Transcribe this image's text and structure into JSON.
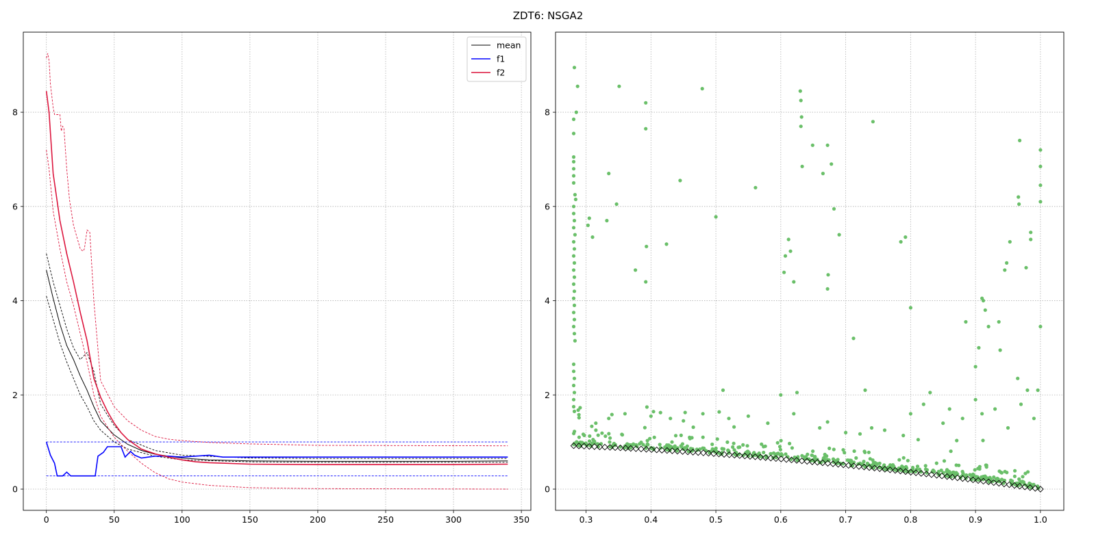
{
  "figure": {
    "title": "ZDT6: NSGA2"
  },
  "chart_data": [
    {
      "type": "line",
      "title": "",
      "xlabel": "",
      "ylabel": "",
      "xlim": [
        -17,
        357
      ],
      "ylim": [
        -0.45,
        9.7
      ],
      "xticks": [
        0,
        50,
        100,
        150,
        200,
        250,
        300,
        350
      ],
      "yticks": [
        0,
        2,
        4,
        6,
        8
      ],
      "grid": true,
      "legend": {
        "placement": "top-right",
        "entries": [
          "mean",
          "f1",
          "f2"
        ]
      },
      "colors": {
        "mean": "#000000",
        "f1": "#0000ff",
        "f2": "#dc143c"
      },
      "series": [
        {
          "name": "mean",
          "style": "solid",
          "color": "#000000",
          "x": [
            0,
            5,
            10,
            15,
            20,
            25,
            30,
            35,
            40,
            50,
            60,
            70,
            80,
            100,
            120,
            150,
            200,
            250,
            300,
            340
          ],
          "y": [
            4.65,
            4.05,
            3.5,
            3.05,
            2.75,
            2.4,
            2.1,
            1.75,
            1.45,
            1.15,
            0.95,
            0.82,
            0.74,
            0.66,
            0.62,
            0.6,
            0.59,
            0.59,
            0.59,
            0.6
          ]
        },
        {
          "name": "mean max",
          "style": "dashed",
          "color": "#000000",
          "x": [
            0,
            5,
            10,
            15,
            20,
            25,
            30,
            35,
            40,
            50,
            60,
            80,
            100,
            150,
            200,
            340
          ],
          "y": [
            5.0,
            4.4,
            3.9,
            3.4,
            3.0,
            2.75,
            2.9,
            2.5,
            1.8,
            1.35,
            1.05,
            0.82,
            0.72,
            0.66,
            0.65,
            0.65
          ]
        },
        {
          "name": "mean min",
          "style": "dashed",
          "color": "#000000",
          "x": [
            0,
            5,
            10,
            15,
            20,
            25,
            30,
            35,
            40,
            50,
            60,
            80,
            100,
            150,
            200,
            340
          ],
          "y": [
            4.1,
            3.6,
            3.1,
            2.7,
            2.35,
            2.0,
            1.75,
            1.45,
            1.25,
            1.0,
            0.85,
            0.7,
            0.62,
            0.58,
            0.57,
            0.57
          ]
        },
        {
          "name": "f1",
          "style": "solid",
          "color": "#0000ff",
          "x": [
            0,
            3,
            6,
            8,
            12,
            15,
            18,
            25,
            30,
            36,
            38,
            42,
            45,
            50,
            55,
            58,
            62,
            65,
            70,
            80,
            90,
            100,
            110,
            120,
            130,
            150,
            200,
            250,
            300,
            340
          ],
          "y": [
            1.0,
            0.72,
            0.55,
            0.28,
            0.28,
            0.36,
            0.28,
            0.28,
            0.28,
            0.28,
            0.7,
            0.78,
            0.9,
            0.9,
            0.9,
            0.68,
            0.8,
            0.72,
            0.66,
            0.7,
            0.7,
            0.68,
            0.7,
            0.72,
            0.68,
            0.68,
            0.68,
            0.68,
            0.68,
            0.68
          ]
        },
        {
          "name": "f1 max",
          "style": "dashed",
          "color": "#0000ff",
          "x": [
            0,
            340
          ],
          "y": [
            1.0,
            1.0
          ]
        },
        {
          "name": "f1 min",
          "style": "dashed",
          "color": "#0000ff",
          "x": [
            0,
            340
          ],
          "y": [
            0.28,
            0.28
          ]
        },
        {
          "name": "f2",
          "style": "solid",
          "color": "#dc143c",
          "x": [
            0,
            2,
            5,
            10,
            15,
            20,
            25,
            30,
            35,
            40,
            45,
            50,
            55,
            60,
            70,
            80,
            90,
            100,
            110,
            120,
            130,
            150,
            200,
            250,
            300,
            340
          ],
          "y": [
            8.45,
            8.0,
            6.7,
            5.7,
            5.0,
            4.4,
            3.75,
            3.15,
            2.35,
            1.95,
            1.65,
            1.4,
            1.2,
            1.05,
            0.85,
            0.75,
            0.68,
            0.62,
            0.58,
            0.56,
            0.55,
            0.53,
            0.52,
            0.52,
            0.52,
            0.53
          ]
        },
        {
          "name": "f2 max",
          "style": "dashed",
          "color": "#dc143c",
          "x": [
            0,
            1,
            2,
            3,
            5,
            6,
            10,
            11,
            12,
            13,
            15,
            17,
            20,
            25,
            27,
            28,
            30,
            32,
            35,
            40,
            50,
            60,
            70,
            80,
            90,
            100,
            120,
            150,
            200,
            340
          ],
          "y": [
            9.15,
            9.25,
            9.1,
            8.6,
            8.1,
            7.95,
            7.95,
            7.6,
            7.7,
            7.65,
            6.8,
            6.15,
            5.6,
            5.1,
            5.05,
            5.1,
            5.5,
            5.45,
            4.0,
            2.3,
            1.75,
            1.45,
            1.25,
            1.12,
            1.06,
            1.03,
            0.99,
            0.96,
            0.93,
            0.92
          ]
        },
        {
          "name": "f2 min",
          "style": "dashed",
          "color": "#dc143c",
          "x": [
            0,
            2,
            5,
            10,
            15,
            20,
            25,
            30,
            35,
            40,
            50,
            60,
            70,
            80,
            90,
            100,
            120,
            150,
            200,
            340
          ],
          "y": [
            7.2,
            6.8,
            5.9,
            5.1,
            4.4,
            3.9,
            3.3,
            2.7,
            2.0,
            1.55,
            1.1,
            0.8,
            0.55,
            0.35,
            0.22,
            0.15,
            0.08,
            0.03,
            0.01,
            0.0
          ]
        }
      ]
    },
    {
      "type": "scatter",
      "title": "",
      "xlabel": "",
      "ylabel": "",
      "xlim": [
        0.253,
        1.036
      ],
      "ylim": [
        -0.45,
        9.7
      ],
      "xticks": [
        0.3,
        0.4,
        0.5,
        0.6,
        0.7,
        0.8,
        0.9,
        1.0
      ],
      "yticks": [
        0,
        2,
        4,
        6,
        8
      ],
      "grid": true,
      "series": [
        {
          "name": "population",
          "marker": "circle",
          "color": "#6abf69",
          "points": [
            [
              0.282,
              8.95
            ],
            [
              0.287,
              8.55
            ],
            [
              0.285,
              8.0
            ],
            [
              0.281,
              7.85
            ],
            [
              0.281,
              7.55
            ],
            [
              0.281,
              7.05
            ],
            [
              0.281,
              6.95
            ],
            [
              0.281,
              6.8
            ],
            [
              0.281,
              6.65
            ],
            [
              0.281,
              6.5
            ],
            [
              0.283,
              6.25
            ],
            [
              0.284,
              6.15
            ],
            [
              0.281,
              6.0
            ],
            [
              0.281,
              5.85
            ],
            [
              0.282,
              5.7
            ],
            [
              0.281,
              5.55
            ],
            [
              0.283,
              5.4
            ],
            [
              0.281,
              5.25
            ],
            [
              0.282,
              5.1
            ],
            [
              0.281,
              4.95
            ],
            [
              0.282,
              4.8
            ],
            [
              0.281,
              4.65
            ],
            [
              0.282,
              4.5
            ],
            [
              0.281,
              4.35
            ],
            [
              0.282,
              4.2
            ],
            [
              0.281,
              4.05
            ],
            [
              0.282,
              3.9
            ],
            [
              0.281,
              3.75
            ],
            [
              0.282,
              3.6
            ],
            [
              0.281,
              3.45
            ],
            [
              0.282,
              3.3
            ],
            [
              0.283,
              3.15
            ],
            [
              0.281,
              2.65
            ],
            [
              0.281,
              2.5
            ],
            [
              0.282,
              2.35
            ],
            [
              0.281,
              2.2
            ],
            [
              0.282,
              2.05
            ],
            [
              0.281,
              1.9
            ],
            [
              0.281,
              1.75
            ],
            [
              0.282,
              1.65
            ],
            [
              0.289,
              1.58
            ],
            [
              0.305,
              5.75
            ],
            [
              0.303,
              5.6
            ],
            [
              0.31,
              5.35
            ],
            [
              0.335,
              6.7
            ],
            [
              0.332,
              5.7
            ],
            [
              0.347,
              6.05
            ],
            [
              0.351,
              8.55
            ],
            [
              0.376,
              4.65
            ],
            [
              0.392,
              8.2
            ],
            [
              0.392,
              7.65
            ],
            [
              0.393,
              5.15
            ],
            [
              0.392,
              4.4
            ],
            [
              0.424,
              5.2
            ],
            [
              0.445,
              6.55
            ],
            [
              0.479,
              8.5
            ],
            [
              0.5,
              5.78
            ],
            [
              0.511,
              2.1
            ],
            [
              0.561,
              6.4
            ],
            [
              0.6,
              2.0
            ],
            [
              0.605,
              4.6
            ],
            [
              0.607,
              4.95
            ],
            [
              0.612,
              5.3
            ],
            [
              0.615,
              5.05
            ],
            [
              0.62,
              4.4
            ],
            [
              0.625,
              2.05
            ],
            [
              0.63,
              8.45
            ],
            [
              0.631,
              8.25
            ],
            [
              0.632,
              7.9
            ],
            [
              0.631,
              7.7
            ],
            [
              0.633,
              6.85
            ],
            [
              0.649,
              7.3
            ],
            [
              0.665,
              6.7
            ],
            [
              0.672,
              7.3
            ],
            [
              0.672,
              4.25
            ],
            [
              0.673,
              4.55
            ],
            [
              0.678,
              6.9
            ],
            [
              0.682,
              5.95
            ],
            [
              0.69,
              5.4
            ],
            [
              0.712,
              3.2
            ],
            [
              0.73,
              2.1
            ],
            [
              0.742,
              7.8
            ],
            [
              0.785,
              5.25
            ],
            [
              0.792,
              5.35
            ],
            [
              0.8,
              3.85
            ],
            [
              0.885,
              3.55
            ],
            [
              0.9,
              2.6
            ],
            [
              0.905,
              3.0
            ],
            [
              0.91,
              4.05
            ],
            [
              0.912,
              4.0
            ],
            [
              0.915,
              3.8
            ],
            [
              0.92,
              3.45
            ],
            [
              0.936,
              3.55
            ],
            [
              0.945,
              4.65
            ],
            [
              0.948,
              4.8
            ],
            [
              0.953,
              5.25
            ],
            [
              0.938,
              2.95
            ],
            [
              0.968,
              7.4
            ],
            [
              0.966,
              6.2
            ],
            [
              0.967,
              6.05
            ],
            [
              0.978,
              4.7
            ],
            [
              0.985,
              5.45
            ],
            [
              0.985,
              5.3
            ],
            [
              1.0,
              7.2
            ],
            [
              1.0,
              6.85
            ],
            [
              1.0,
              6.45
            ],
            [
              1.0,
              6.1
            ],
            [
              1.0,
              3.45
            ],
            [
              0.98,
              2.1
            ],
            [
              0.996,
              2.1
            ],
            [
              0.965,
              2.35
            ],
            [
              0.315,
              1.4
            ],
            [
              0.335,
              1.5
            ],
            [
              0.36,
              1.6
            ],
            [
              0.4,
              1.55
            ],
            [
              0.43,
              1.5
            ],
            [
              0.45,
              1.45
            ],
            [
              0.48,
              1.6
            ],
            [
              0.52,
              1.5
            ],
            [
              0.55,
              1.55
            ],
            [
              0.58,
              1.4
            ],
            [
              0.62,
              1.6
            ],
            [
              0.66,
              1.3
            ],
            [
              0.7,
              1.2
            ],
            [
              0.74,
              1.3
            ],
            [
              0.76,
              1.25
            ],
            [
              0.8,
              1.6
            ],
            [
              0.82,
              1.8
            ],
            [
              0.83,
              2.05
            ],
            [
              0.85,
              1.4
            ],
            [
              0.86,
              1.7
            ],
            [
              0.88,
              1.5
            ],
            [
              0.9,
              1.9
            ],
            [
              0.91,
              1.6
            ],
            [
              0.93,
              1.7
            ],
            [
              0.95,
              1.3
            ],
            [
              0.97,
              1.8
            ],
            [
              0.99,
              1.5
            ]
          ]
        },
        {
          "name": "pareto front",
          "marker": "diamond",
          "color": "#000000",
          "x_range": [
            0.281,
            1.0
          ],
          "relation": "y = 1 - x^2"
        }
      ]
    }
  ]
}
